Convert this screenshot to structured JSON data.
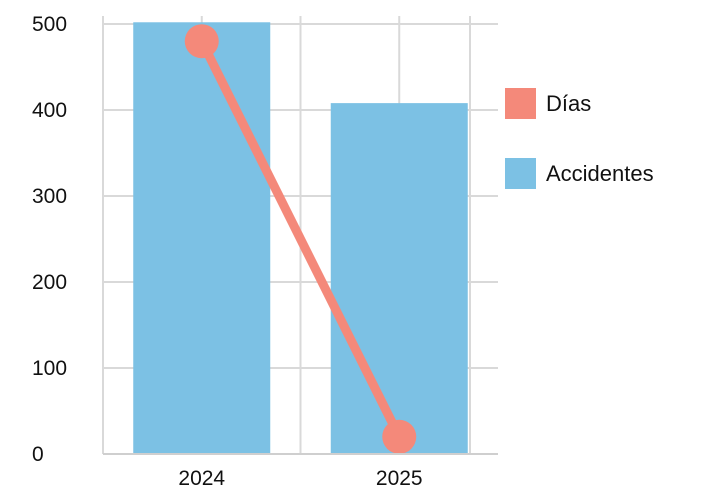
{
  "chart_data": {
    "type": "bar",
    "categories": [
      "2024",
      "2025"
    ],
    "ylim": [
      0,
      500
    ],
    "yticks": [
      0,
      100,
      200,
      300,
      400,
      500
    ],
    "grid": true,
    "legend_position": "right",
    "series": [
      {
        "name": "Accidentes",
        "type": "bar",
        "values": [
          502,
          408
        ],
        "color": "#7cc1e4"
      },
      {
        "name": "Días",
        "type": "line",
        "values": [
          480,
          20
        ],
        "color": "#f4897a"
      }
    ]
  }
}
